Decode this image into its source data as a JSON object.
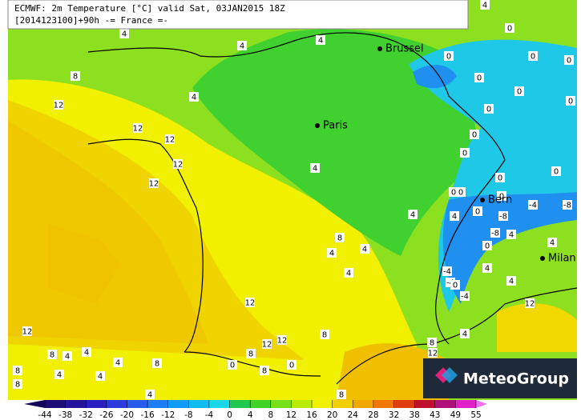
{
  "header": {
    "line1": "ECMWF: 2m Temperature [°C] valid Sat, 03JAN2015 18Z",
    "line2": "[2014123100]+90h -= France =-"
  },
  "cities": [
    "Brussel",
    "Paris",
    "Bern",
    "Milan"
  ],
  "contour_labels": [
    4,
    4,
    4,
    8,
    4,
    12,
    12,
    12,
    12,
    12,
    4,
    0,
    4,
    0,
    0,
    0,
    0,
    0,
    0,
    0,
    0,
    0,
    0,
    0,
    0,
    0,
    0,
    -4,
    -8,
    0,
    4,
    -8,
    -8,
    4,
    0,
    4,
    4,
    8,
    4,
    4,
    4,
    -4,
    -4,
    0,
    4,
    4,
    -4,
    12,
    12,
    12,
    12,
    12,
    8,
    8,
    8,
    4,
    12,
    8,
    4,
    4,
    4,
    8,
    0,
    8,
    0,
    8,
    4,
    4,
    8,
    4,
    8
  ],
  "colorbar": {
    "ticks": [
      -44,
      -38,
      -32,
      -26,
      -20,
      -16,
      -12,
      -8,
      -4,
      0,
      4,
      8,
      12,
      16,
      20,
      24,
      28,
      32,
      38,
      43,
      49,
      55
    ],
    "colors": [
      "#14085a",
      "#1c0c78",
      "#24149a",
      "#2a20c0",
      "#2c3cdc",
      "#2a5cec",
      "#1c7cf4",
      "#109cf4",
      "#10bcf0",
      "#18d8e8",
      "#20c850",
      "#40d428",
      "#78e018",
      "#b8ec08",
      "#f0f000",
      "#f0d000",
      "#f0a800",
      "#f07800",
      "#e04010",
      "#c01030",
      "#b0107a",
      "#e020c8",
      "#f070f0"
    ]
  },
  "logo": "MeteoGroup"
}
